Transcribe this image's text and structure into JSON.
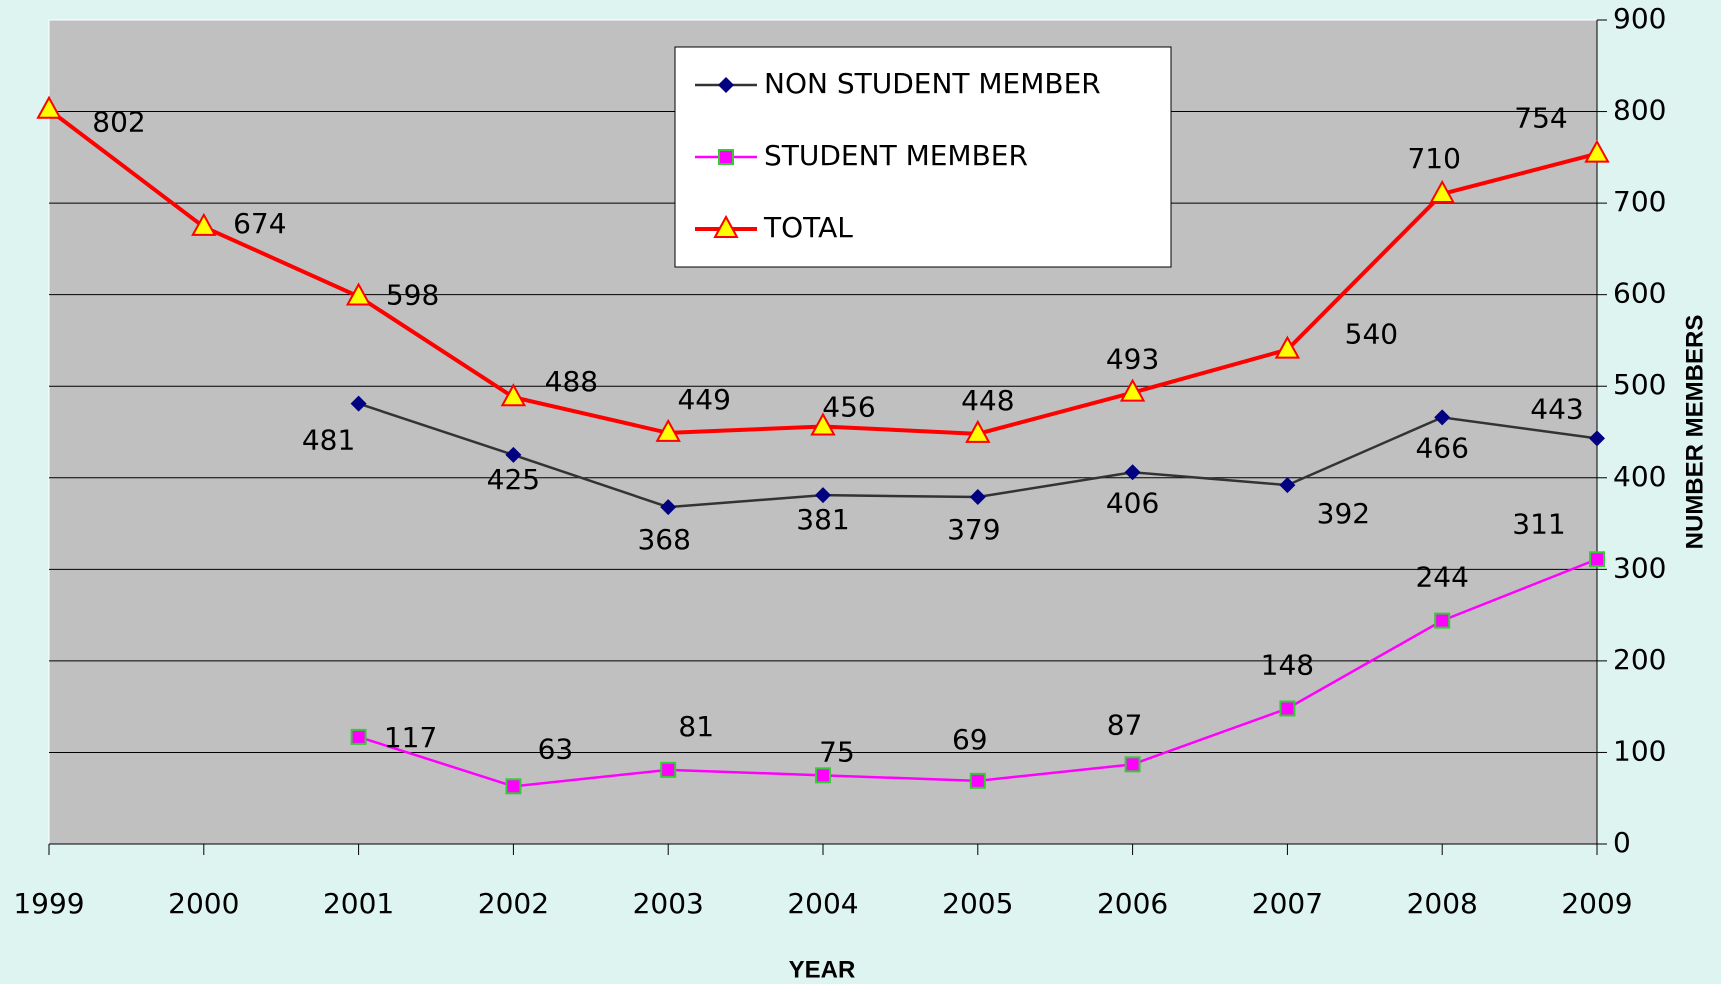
{
  "chart_data": {
    "type": "line",
    "x_label": "YEAR",
    "y_label": "NUMBER MEMBERS",
    "categories": [
      "1999",
      "2000",
      "2001",
      "2002",
      "2003",
      "2004",
      "2005",
      "2006",
      "2007",
      "2008",
      "2009"
    ],
    "series": [
      {
        "name": "NON STUDENT MEMBER",
        "color": "#333333",
        "marker_color": "#000080",
        "marker": "diamond",
        "values": [
          null,
          null,
          481,
          425,
          368,
          381,
          379,
          406,
          392,
          466,
          443
        ]
      },
      {
        "name": "STUDENT MEMBER",
        "color": "#ff00ff",
        "marker_color": "#ff00ff",
        "marker": "square",
        "values": [
          null,
          null,
          117,
          63,
          81,
          75,
          69,
          87,
          148,
          244,
          311
        ]
      },
      {
        "name": "TOTAL",
        "color": "#ff0000",
        "marker_color": "#ffff00",
        "marker": "triangle",
        "values": [
          802,
          674,
          598,
          488,
          449,
          456,
          448,
          493,
          540,
          710,
          754
        ]
      }
    ],
    "ylim": [
      0,
      900
    ],
    "yticks": [
      0,
      100,
      200,
      300,
      400,
      500,
      600,
      700,
      800,
      900
    ],
    "grid": true,
    "y_axis_side": "right",
    "plot_background": "#c0c0c0"
  }
}
